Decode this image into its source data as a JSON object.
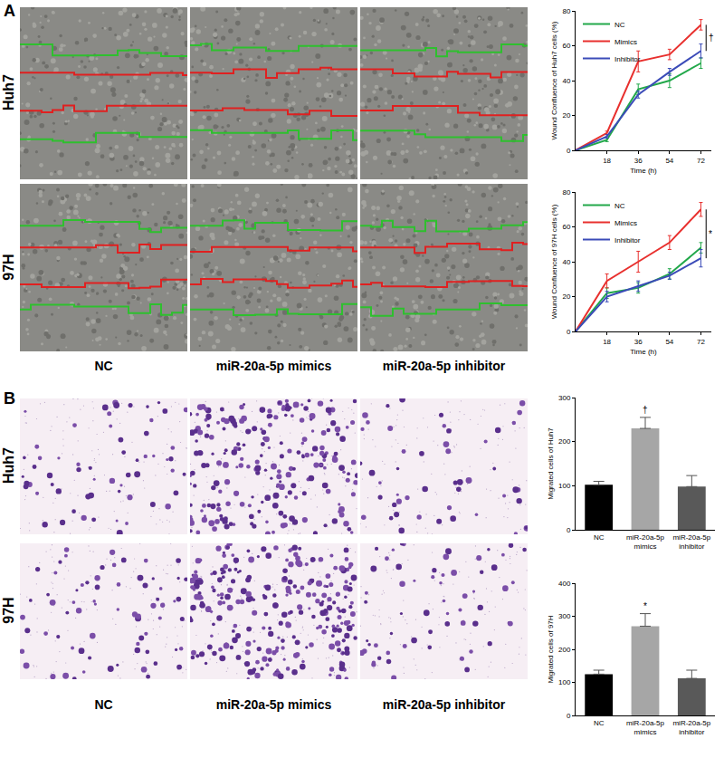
{
  "figure": {
    "panel_labels": [
      "A",
      "B"
    ],
    "row_labels": [
      "Huh7",
      "97H"
    ],
    "column_labels": [
      "NC",
      "miR-20a-5p mimics",
      "miR-20a-5p inhibitor"
    ]
  },
  "chart_data": [
    {
      "type": "line",
      "x_label": "Time (h)",
      "y_label": "Wound Confluence of Huh7 cells (%)",
      "x": [
        0,
        18,
        36,
        54,
        72
      ],
      "xlim": [
        0,
        78
      ],
      "xticks": [
        18,
        36,
        54,
        72
      ],
      "ylim": [
        0,
        80
      ],
      "yticks": [
        0,
        20,
        40,
        60,
        80
      ],
      "grid": false,
      "legend": "upper left",
      "series": [
        {
          "name": "NC",
          "color": "#22a84a",
          "values": [
            0,
            6,
            35,
            40,
            50
          ],
          "errors": [
            0,
            1,
            3,
            4,
            3
          ]
        },
        {
          "name": "Mimics",
          "color": "#e8302e",
          "values": [
            0,
            10,
            51,
            55,
            72
          ],
          "errors": [
            0,
            1,
            6,
            3,
            3
          ]
        },
        {
          "name": "Inhibitor",
          "color": "#3b4bb8",
          "values": [
            0,
            8,
            32,
            45,
            57
          ],
          "errors": [
            0,
            1,
            2,
            2,
            4
          ]
        }
      ],
      "annotations": [
        {
          "text": "†",
          "x": 72,
          "between": [
            "Mimics",
            "Inhibitor"
          ]
        }
      ]
    },
    {
      "type": "line",
      "x_label": "Time (h)",
      "y_label": "Wound Confluence of 97H cells (%)",
      "x": [
        0,
        18,
        36,
        54,
        72
      ],
      "xlim": [
        0,
        78
      ],
      "xticks": [
        18,
        36,
        54,
        72
      ],
      "ylim": [
        0,
        80
      ],
      "yticks": [
        0,
        20,
        40,
        60,
        80
      ],
      "grid": false,
      "legend": "upper left",
      "series": [
        {
          "name": "NC",
          "color": "#22a84a",
          "values": [
            0,
            22,
            25,
            33,
            48
          ],
          "errors": [
            0,
            3,
            3,
            3,
            3
          ]
        },
        {
          "name": "Mimics",
          "color": "#e8302e",
          "values": [
            0,
            29,
            40,
            51,
            70
          ],
          "errors": [
            0,
            4,
            6,
            4,
            4
          ]
        },
        {
          "name": "Inhibitor",
          "color": "#3b4bb8",
          "values": [
            0,
            20,
            26,
            32,
            42
          ],
          "errors": [
            0,
            3,
            3,
            2,
            5
          ]
        }
      ],
      "annotations": [
        {
          "text": "*",
          "x": 72,
          "between": [
            "Mimics",
            "Inhibitor"
          ]
        }
      ]
    },
    {
      "type": "bar",
      "y_label": "Migrated cells of Huh7",
      "categories": [
        "NC",
        "miR-20a-5p mimics",
        "miR-20a-5p inhibitor"
      ],
      "values": [
        102,
        230,
        98
      ],
      "errors": [
        8,
        25,
        25
      ],
      "colors": [
        "#000000",
        "#a6a6a6",
        "#595959"
      ],
      "ylim": [
        0,
        300
      ],
      "yticks": [
        0,
        100,
        200,
        300
      ],
      "grid": false,
      "annotations": [
        {
          "text": "†",
          "category": "miR-20a-5p mimics"
        }
      ]
    },
    {
      "type": "bar",
      "y_label": "Migrated cells of 97H",
      "categories": [
        "NC",
        "miR-20a-5p mimics",
        "miR-20a-5p inhibitor"
      ],
      "values": [
        125,
        270,
        112
      ],
      "errors": [
        12,
        38,
        25
      ],
      "colors": [
        "#000000",
        "#a6a6a6",
        "#595959"
      ],
      "ylim": [
        0,
        400
      ],
      "yticks": [
        0,
        100,
        200,
        300,
        400
      ],
      "grid": false,
      "annotations": [
        {
          "text": "*",
          "category": "miR-20a-5p mimics"
        }
      ]
    }
  ]
}
